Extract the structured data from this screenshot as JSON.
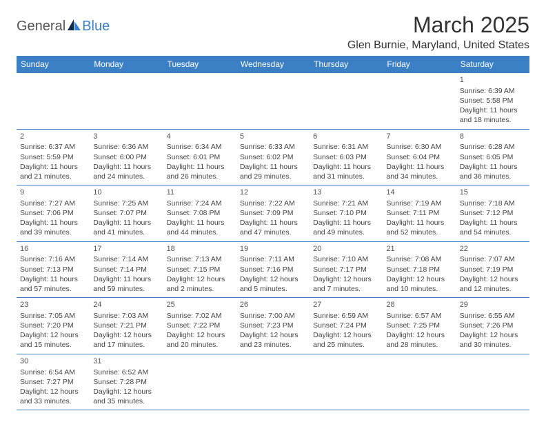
{
  "logo": {
    "general": "General",
    "blue": "Blue"
  },
  "title": "March 2025",
  "location": "Glen Burnie, Maryland, United States",
  "day_headers": [
    "Sunday",
    "Monday",
    "Tuesday",
    "Wednesday",
    "Thursday",
    "Friday",
    "Saturday"
  ],
  "colors": {
    "header_bg": "#3b7fc4",
    "header_text": "#ffffff",
    "border": "#3b7fc4",
    "logo_blue": "#3b7fc4",
    "text": "#333333"
  },
  "days": [
    {
      "n": "1",
      "sunrise": "6:39 AM",
      "sunset": "5:58 PM",
      "dl1": "Daylight: 11 hours",
      "dl2": "and 18 minutes."
    },
    {
      "n": "2",
      "sunrise": "6:37 AM",
      "sunset": "5:59 PM",
      "dl1": "Daylight: 11 hours",
      "dl2": "and 21 minutes."
    },
    {
      "n": "3",
      "sunrise": "6:36 AM",
      "sunset": "6:00 PM",
      "dl1": "Daylight: 11 hours",
      "dl2": "and 24 minutes."
    },
    {
      "n": "4",
      "sunrise": "6:34 AM",
      "sunset": "6:01 PM",
      "dl1": "Daylight: 11 hours",
      "dl2": "and 26 minutes."
    },
    {
      "n": "5",
      "sunrise": "6:33 AM",
      "sunset": "6:02 PM",
      "dl1": "Daylight: 11 hours",
      "dl2": "and 29 minutes."
    },
    {
      "n": "6",
      "sunrise": "6:31 AM",
      "sunset": "6:03 PM",
      "dl1": "Daylight: 11 hours",
      "dl2": "and 31 minutes."
    },
    {
      "n": "7",
      "sunrise": "6:30 AM",
      "sunset": "6:04 PM",
      "dl1": "Daylight: 11 hours",
      "dl2": "and 34 minutes."
    },
    {
      "n": "8",
      "sunrise": "6:28 AM",
      "sunset": "6:05 PM",
      "dl1": "Daylight: 11 hours",
      "dl2": "and 36 minutes."
    },
    {
      "n": "9",
      "sunrise": "7:27 AM",
      "sunset": "7:06 PM",
      "dl1": "Daylight: 11 hours",
      "dl2": "and 39 minutes."
    },
    {
      "n": "10",
      "sunrise": "7:25 AM",
      "sunset": "7:07 PM",
      "dl1": "Daylight: 11 hours",
      "dl2": "and 41 minutes."
    },
    {
      "n": "11",
      "sunrise": "7:24 AM",
      "sunset": "7:08 PM",
      "dl1": "Daylight: 11 hours",
      "dl2": "and 44 minutes."
    },
    {
      "n": "12",
      "sunrise": "7:22 AM",
      "sunset": "7:09 PM",
      "dl1": "Daylight: 11 hours",
      "dl2": "and 47 minutes."
    },
    {
      "n": "13",
      "sunrise": "7:21 AM",
      "sunset": "7:10 PM",
      "dl1": "Daylight: 11 hours",
      "dl2": "and 49 minutes."
    },
    {
      "n": "14",
      "sunrise": "7:19 AM",
      "sunset": "7:11 PM",
      "dl1": "Daylight: 11 hours",
      "dl2": "and 52 minutes."
    },
    {
      "n": "15",
      "sunrise": "7:18 AM",
      "sunset": "7:12 PM",
      "dl1": "Daylight: 11 hours",
      "dl2": "and 54 minutes."
    },
    {
      "n": "16",
      "sunrise": "7:16 AM",
      "sunset": "7:13 PM",
      "dl1": "Daylight: 11 hours",
      "dl2": "and 57 minutes."
    },
    {
      "n": "17",
      "sunrise": "7:14 AM",
      "sunset": "7:14 PM",
      "dl1": "Daylight: 11 hours",
      "dl2": "and 59 minutes."
    },
    {
      "n": "18",
      "sunrise": "7:13 AM",
      "sunset": "7:15 PM",
      "dl1": "Daylight: 12 hours",
      "dl2": "and 2 minutes."
    },
    {
      "n": "19",
      "sunrise": "7:11 AM",
      "sunset": "7:16 PM",
      "dl1": "Daylight: 12 hours",
      "dl2": "and 5 minutes."
    },
    {
      "n": "20",
      "sunrise": "7:10 AM",
      "sunset": "7:17 PM",
      "dl1": "Daylight: 12 hours",
      "dl2": "and 7 minutes."
    },
    {
      "n": "21",
      "sunrise": "7:08 AM",
      "sunset": "7:18 PM",
      "dl1": "Daylight: 12 hours",
      "dl2": "and 10 minutes."
    },
    {
      "n": "22",
      "sunrise": "7:07 AM",
      "sunset": "7:19 PM",
      "dl1": "Daylight: 12 hours",
      "dl2": "and 12 minutes."
    },
    {
      "n": "23",
      "sunrise": "7:05 AM",
      "sunset": "7:20 PM",
      "dl1": "Daylight: 12 hours",
      "dl2": "and 15 minutes."
    },
    {
      "n": "24",
      "sunrise": "7:03 AM",
      "sunset": "7:21 PM",
      "dl1": "Daylight: 12 hours",
      "dl2": "and 17 minutes."
    },
    {
      "n": "25",
      "sunrise": "7:02 AM",
      "sunset": "7:22 PM",
      "dl1": "Daylight: 12 hours",
      "dl2": "and 20 minutes."
    },
    {
      "n": "26",
      "sunrise": "7:00 AM",
      "sunset": "7:23 PM",
      "dl1": "Daylight: 12 hours",
      "dl2": "and 23 minutes."
    },
    {
      "n": "27",
      "sunrise": "6:59 AM",
      "sunset": "7:24 PM",
      "dl1": "Daylight: 12 hours",
      "dl2": "and 25 minutes."
    },
    {
      "n": "28",
      "sunrise": "6:57 AM",
      "sunset": "7:25 PM",
      "dl1": "Daylight: 12 hours",
      "dl2": "and 28 minutes."
    },
    {
      "n": "29",
      "sunrise": "6:55 AM",
      "sunset": "7:26 PM",
      "dl1": "Daylight: 12 hours",
      "dl2": "and 30 minutes."
    },
    {
      "n": "30",
      "sunrise": "6:54 AM",
      "sunset": "7:27 PM",
      "dl1": "Daylight: 12 hours",
      "dl2": "and 33 minutes."
    },
    {
      "n": "31",
      "sunrise": "6:52 AM",
      "sunset": "7:28 PM",
      "dl1": "Daylight: 12 hours",
      "dl2": "and 35 minutes."
    }
  ],
  "layout": {
    "first_day_col": 6,
    "weeks": 6
  }
}
